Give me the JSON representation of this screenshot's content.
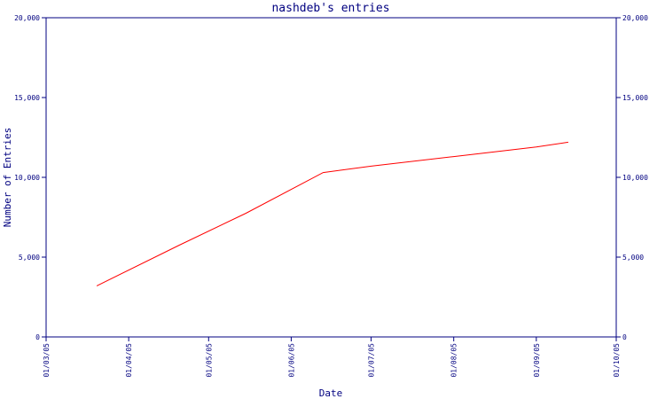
{
  "chart_data": {
    "type": "line",
    "title": "nashdeb's entries",
    "xlabel": "Date",
    "ylabel": "Number of Entries",
    "x_ticks": [
      "01/03/05",
      "01/04/05",
      "01/05/05",
      "01/06/05",
      "01/07/05",
      "01/08/05",
      "01/09/05",
      "01/10/05"
    ],
    "y_ticks": [
      "0",
      "5,000",
      "10,000",
      "15,000",
      "20,000"
    ],
    "ylim": [
      0,
      20000
    ],
    "grid": false,
    "series": [
      {
        "color": "#ff0000",
        "points": [
          {
            "x": "2005-03-20",
            "y": 3200
          },
          {
            "x": "2005-04-20",
            "y": 5750
          },
          {
            "x": "2005-05-15",
            "y": 7750
          },
          {
            "x": "2005-06-13",
            "y": 10300
          },
          {
            "x": "2005-07-01",
            "y": 10700
          },
          {
            "x": "2005-08-01",
            "y": 11300
          },
          {
            "x": "2005-09-01",
            "y": 11900
          },
          {
            "x": "2005-09-13",
            "y": 12200
          }
        ]
      }
    ],
    "colors": {
      "axis": "#000080",
      "text": "#000080",
      "line": "#ff0000"
    }
  }
}
